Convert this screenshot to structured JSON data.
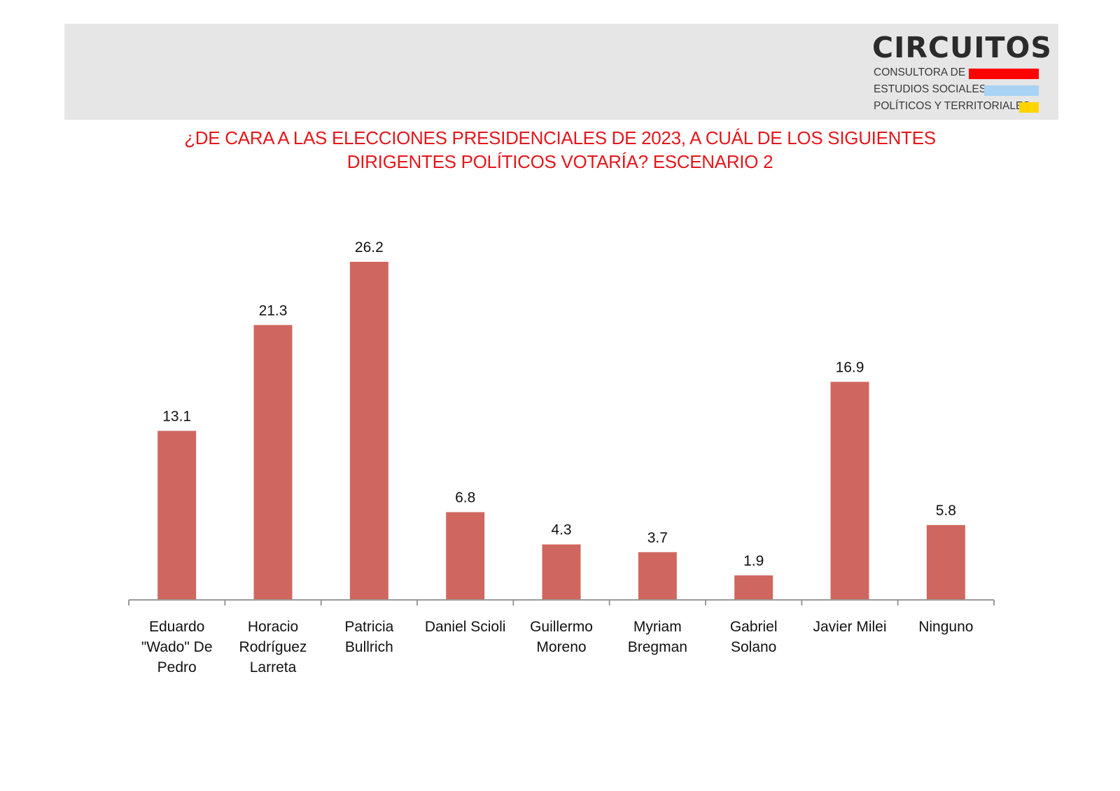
{
  "logo": {
    "name": "CIRCUITOS",
    "lines": [
      "CONSULTORA DE",
      "ESTUDIOS SOCIALES,",
      "POLÍTICOS Y TERRITORIALES"
    ],
    "bar_colors": [
      "#ff0000",
      "#a9d3f5",
      "#ffd400"
    ]
  },
  "chart_data": {
    "type": "bar",
    "title_lines": [
      "¿DE CARA A LAS ELECCIONES PRESIDENCIALES DE 2023, A CUÁL DE LOS SIGUIENTES",
      "DIRIGENTES POLÍTICOS VOTARÍA? ESCENARIO 2"
    ],
    "categories": [
      [
        "Eduardo",
        "\"Wado\" De",
        "Pedro"
      ],
      [
        "Horacio",
        "Rodríguez",
        "Larreta"
      ],
      [
        "Patricia",
        "Bullrich"
      ],
      [
        "Daniel Scioli"
      ],
      [
        "Guillermo",
        "Moreno"
      ],
      [
        "Myriam",
        "Bregman"
      ],
      [
        "Gabriel",
        "Solano"
      ],
      [
        "Javier Milei"
      ],
      [
        "Ninguno"
      ]
    ],
    "values": [
      13.1,
      21.3,
      26.2,
      6.8,
      4.3,
      3.7,
      1.9,
      16.9,
      5.8
    ],
    "value_labels": [
      "13.1",
      "21.3",
      "26.2",
      "6.8",
      "4.3",
      "3.7",
      "1.9",
      "16.9",
      "5.8"
    ],
    "ylim": [
      0,
      26.2
    ],
    "xlabel": "",
    "ylabel": "",
    "grid": false,
    "bar_color": "#cf6760",
    "title_color": "#e4171c"
  }
}
